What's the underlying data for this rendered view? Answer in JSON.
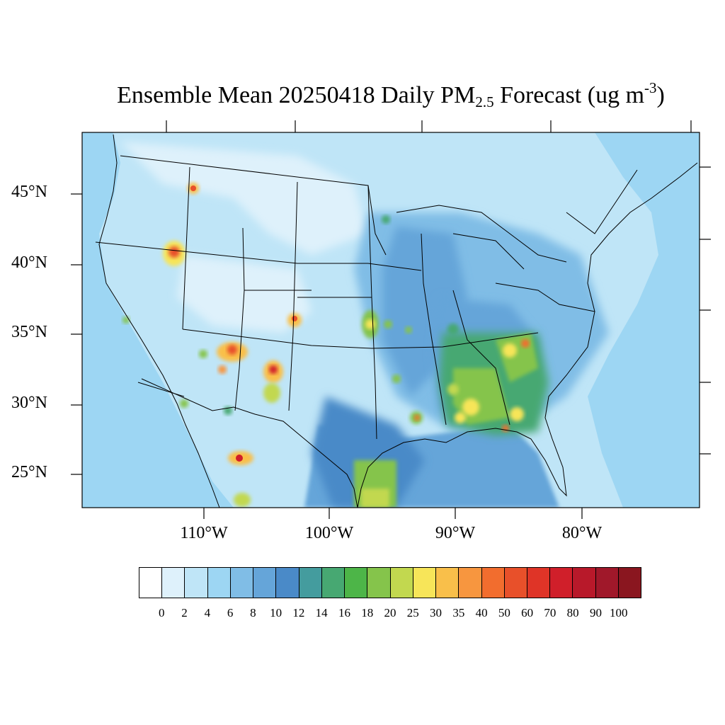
{
  "title": {
    "prefix": "Ensemble Mean 20250418 Daily PM",
    "subscript": "2.5",
    "middle": " Forecast (ug m",
    "superscript": "-3",
    "suffix": ")"
  },
  "lat_labels": [
    "45°N",
    "40°N",
    "35°N",
    "30°N",
    "25°N"
  ],
  "lon_labels": [
    "110°W",
    "100°W",
    "90°W",
    "80°W"
  ],
  "colorbar": {
    "levels": [
      "0",
      "2",
      "4",
      "6",
      "8",
      "10",
      "12",
      "14",
      "16",
      "18",
      "20",
      "25",
      "30",
      "35",
      "40",
      "50",
      "60",
      "70",
      "80",
      "90",
      "100"
    ],
    "colors": [
      "#ffffff",
      "#def1fb",
      "#bfe5f7",
      "#9dd6f3",
      "#80bde6",
      "#65a5d9",
      "#4a8ac8",
      "#449c9e",
      "#47a872",
      "#4db548",
      "#85c44b",
      "#c2d84f",
      "#f7e559",
      "#f9bf4a",
      "#f7963f",
      "#f26d2e",
      "#e8502a",
      "#df3427",
      "#d01f2a",
      "#b8192a",
      "#a0182a",
      "#8a161f"
    ]
  },
  "colors": {
    "background": "#bfe5f7",
    "ocean_west": "#9dd6f3",
    "ocean_east": "#9dd6f3",
    "gulf": "#65a5d9",
    "land_low": "#def1fb",
    "coastline": "#000000"
  }
}
